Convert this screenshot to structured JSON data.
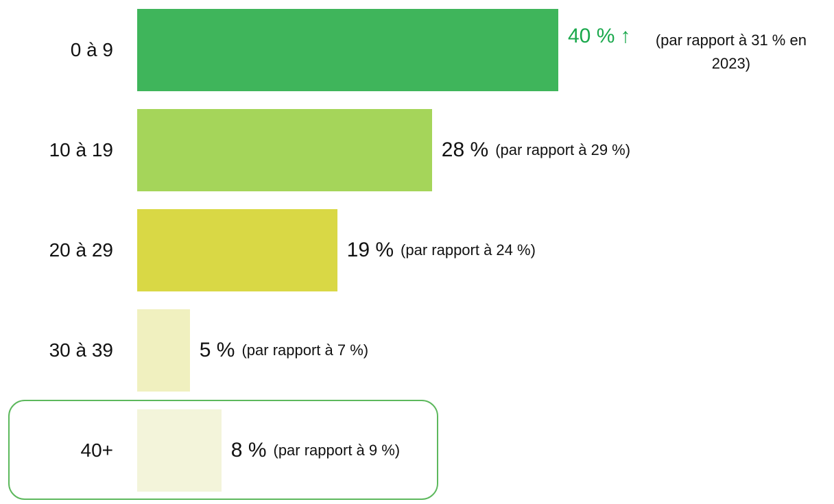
{
  "chart_data": {
    "type": "barh",
    "categories": [
      "0 à 9",
      "10 à 19",
      "20 à 29",
      "30 à 39",
      "40+"
    ],
    "values": [
      40,
      28,
      19,
      5,
      8
    ],
    "value_labels": [
      "40 %",
      "28 %",
      "19 %",
      "5 %",
      "8 %"
    ],
    "comparisons": [
      "(par rapport à 31 % en 2023)",
      "(par rapport à 29 %)",
      "(par rapport à 24 %)",
      "(par rapport à 7 %)",
      "(par rapport à 9 %)"
    ],
    "colors": [
      "#3fb55b",
      "#a5d55a",
      "#d9d845",
      "#f0f0bf",
      "#f3f4da"
    ],
    "annotations": [
      {
        "category": "0 à 9",
        "text": "↑",
        "color": "#1aa84c"
      }
    ]
  }
}
